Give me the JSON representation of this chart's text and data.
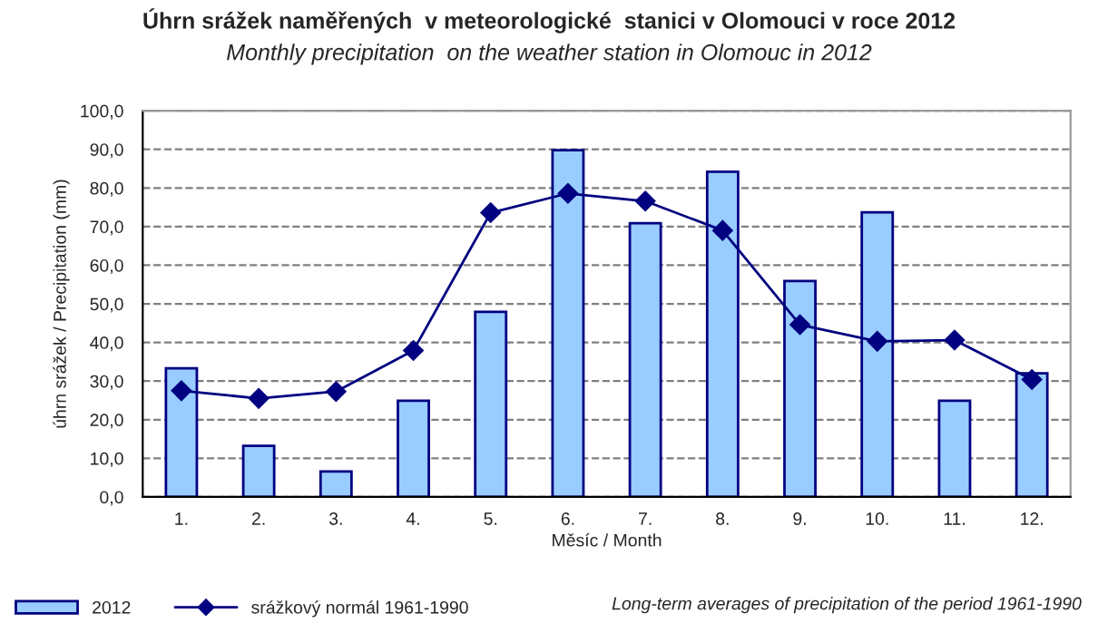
{
  "chart_data": {
    "type": "bar",
    "title": "Úhrn srážek naměřených  v meteorologické  stanici v Olomouci v roce 2012",
    "subtitle": "Monthly precipitation  on the weather station in Olomouc in 2012",
    "xlabel": "Měsíc / Month",
    "ylabel": "úhrn srážek / Precipitation (mm)",
    "categories": [
      "1.",
      "2.",
      "3.",
      "4.",
      "5.",
      "6.",
      "7.",
      "8.",
      "9.",
      "10.",
      "11.",
      "12."
    ],
    "series": [
      {
        "name": "2012",
        "color": "#99ccff",
        "values": [
          33.3,
          13.2,
          6.6,
          24.9,
          47.9,
          89.8,
          70.9,
          84.2,
          55.9,
          73.7,
          24.9,
          32.0
        ]
      },
      {
        "name": "srážkový normál 1961-1990",
        "type": "line",
        "color": "#000080",
        "marker": "diamond",
        "values": [
          27.5,
          25.5,
          27.3,
          37.9,
          73.6,
          78.6,
          76.6,
          69.0,
          44.6,
          40.3,
          40.6,
          30.4
        ]
      }
    ],
    "ylim": [
      0,
      100
    ],
    "yticks": [
      {
        "value": 0,
        "label": "0,0"
      },
      {
        "value": 10,
        "label": "10,0"
      },
      {
        "value": 20,
        "label": "20,0"
      },
      {
        "value": 30,
        "label": "30,0"
      },
      {
        "value": 40,
        "label": "40,0"
      },
      {
        "value": 50,
        "label": "50,0"
      },
      {
        "value": 60,
        "label": "60,0"
      },
      {
        "value": 70,
        "label": "70,0"
      },
      {
        "value": 80,
        "label": "80,0"
      },
      {
        "value": 90,
        "label": "90,0"
      },
      {
        "value": 100,
        "label": "100,0"
      }
    ],
    "grid": "y",
    "legend": "bottom",
    "annotations": [
      "Long-term averages of precipitation of the period 1961-1990"
    ]
  }
}
